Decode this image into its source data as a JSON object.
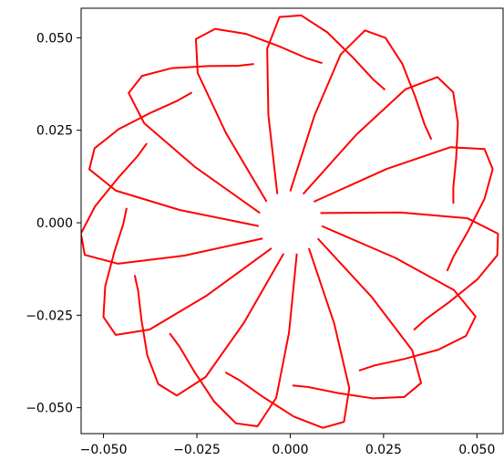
{
  "chart_data": {
    "type": "line",
    "title": "",
    "xlabel": "",
    "ylabel": "",
    "xlim": [
      -0.056,
      0.057
    ],
    "ylim": [
      -0.057,
      0.058
    ],
    "grid": false,
    "aspect": "equal",
    "line_color": "#ff0000",
    "xticks": [
      -0.05,
      -0.025,
      0.0,
      0.025,
      0.05
    ],
    "yticks": [
      -0.05,
      -0.025,
      0.0,
      0.025,
      0.05
    ],
    "xtick_labels": [
      "−0.050",
      "−0.025",
      "0.000",
      "0.025",
      "0.050"
    ],
    "ytick_labels": [
      "−0.050",
      "−0.025",
      "0.000",
      "0.025",
      "0.050"
    ],
    "symmetry_order": 15,
    "series": [
      {
        "x": [
          0.0,
          0.0065,
          0.0135,
          0.02,
          0.0255,
          0.03,
          0.0335,
          0.036,
          0.0378
        ],
        "y": [
          0.0085,
          0.029,
          0.0455,
          0.052,
          0.05,
          0.043,
          0.034,
          0.0265,
          0.0225
        ]
      }
    ]
  }
}
